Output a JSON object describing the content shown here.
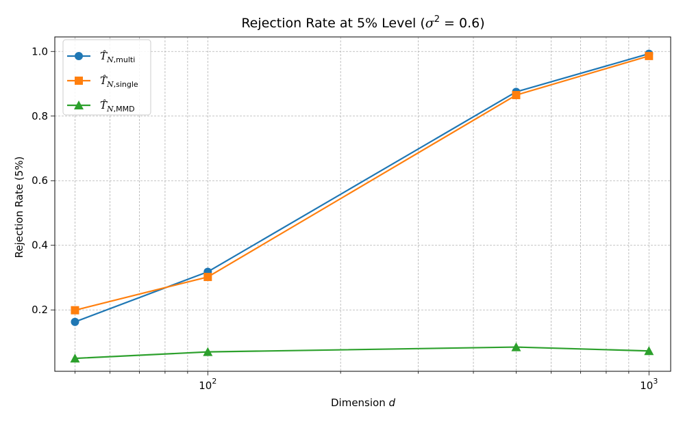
{
  "chart_data": {
    "type": "line",
    "title_prefix": "Rejection Rate at 5% Level (",
    "title_sigma": "σ",
    "title_exp": "2",
    "title_suffix": " = 0.6)",
    "xlabel_prefix": "Dimension ",
    "xlabel_var": "d",
    "ylabel": "Rejection Rate (5%)",
    "xscale": "log",
    "xlim": [
      45,
      1120
    ],
    "ylim": [
      0.01,
      1.045
    ],
    "grid": true,
    "legend_position": "upper-left",
    "x": [
      50,
      100,
      500,
      1000
    ],
    "x_tick_labels": [
      {
        "value": 100,
        "base": "10",
        "exp": "2"
      },
      {
        "value": 1000,
        "base": "10",
        "exp": "3"
      }
    ],
    "y_ticks": [
      0.2,
      0.4,
      0.6,
      0.8,
      1.0
    ],
    "y_tick_labels": [
      "0.2",
      "0.4",
      "0.6",
      "0.8",
      "1.0"
    ],
    "series": [
      {
        "name": "T̂N,multi",
        "symbol": "T̂",
        "sub_italic": "N",
        "sub_text": ",multi",
        "color": "#1f77b4",
        "marker": "circle",
        "values": [
          0.163,
          0.318,
          0.875,
          0.993
        ]
      },
      {
        "name": "T̂N,single",
        "symbol": "T̂",
        "sub_italic": "N",
        "sub_text": ",single",
        "color": "#ff7f0e",
        "marker": "square",
        "values": [
          0.199,
          0.302,
          0.865,
          0.986
        ]
      },
      {
        "name": "T̂N,MMD",
        "symbol": "T̂",
        "sub_italic": "N",
        "sub_text": ",MMD",
        "color": "#2ca02c",
        "marker": "triangle",
        "values": [
          0.05,
          0.07,
          0.085,
          0.073
        ]
      }
    ]
  }
}
